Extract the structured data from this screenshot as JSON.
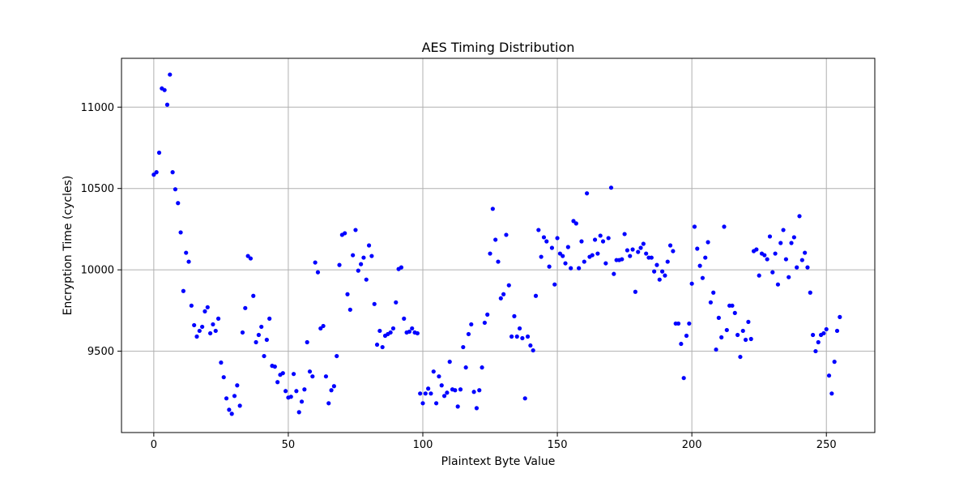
{
  "chart_data": {
    "type": "scatter",
    "title": "AES Timing Distribution",
    "xlabel": "Plaintext Byte Value",
    "ylabel": "Encryption Time (cycles)",
    "xlim": [
      -12,
      268
    ],
    "ylim": [
      9000,
      11300
    ],
    "xticks": [
      0,
      50,
      100,
      150,
      200,
      250
    ],
    "yticks": [
      9500,
      10000,
      10500,
      11000
    ],
    "grid": true,
    "marker_color": "#0000ff",
    "x": [
      0,
      1,
      2,
      3,
      4,
      5,
      6,
      7,
      8,
      9,
      10,
      11,
      12,
      13,
      14,
      15,
      16,
      17,
      18,
      19,
      20,
      21,
      22,
      23,
      24,
      25,
      26,
      27,
      28,
      29,
      30,
      31,
      32,
      33,
      34,
      35,
      36,
      37,
      38,
      39,
      40,
      41,
      42,
      43,
      44,
      45,
      46,
      47,
      48,
      49,
      50,
      51,
      52,
      53,
      54,
      55,
      56,
      57,
      58,
      59,
      60,
      61,
      62,
      63,
      64,
      65,
      66,
      67,
      68,
      69,
      70,
      71,
      72,
      73,
      74,
      75,
      76,
      77,
      78,
      79,
      80,
      81,
      82,
      83,
      84,
      85,
      86,
      87,
      88,
      89,
      90,
      91,
      92,
      93,
      94,
      95,
      96,
      97,
      98,
      99,
      100,
      101,
      102,
      103,
      104,
      105,
      106,
      107,
      108,
      109,
      110,
      111,
      112,
      113,
      114,
      115,
      116,
      117,
      118,
      119,
      120,
      121,
      122,
      123,
      124,
      125,
      126,
      127,
      128,
      129,
      130,
      131,
      132,
      133,
      134,
      135,
      136,
      137,
      138,
      139,
      140,
      141,
      142,
      143,
      144,
      145,
      146,
      147,
      148,
      149,
      150,
      151,
      152,
      153,
      154,
      155,
      156,
      157,
      158,
      159,
      160,
      161,
      162,
      163,
      164,
      165,
      166,
      167,
      168,
      169,
      170,
      171,
      172,
      173,
      174,
      175,
      176,
      177,
      178,
      179,
      180,
      181,
      182,
      183,
      184,
      185,
      186,
      187,
      188,
      189,
      190,
      191,
      192,
      193,
      194,
      195,
      196,
      197,
      198,
      199,
      200,
      201,
      202,
      203,
      204,
      205,
      206,
      207,
      208,
      209,
      210,
      211,
      212,
      213,
      214,
      215,
      216,
      217,
      218,
      219,
      220,
      221,
      222,
      223,
      224,
      225,
      226,
      227,
      228,
      229,
      230,
      231,
      232,
      233,
      234,
      235,
      236,
      237,
      238,
      239,
      240,
      241,
      242,
      243,
      244,
      245,
      246,
      247,
      248,
      249,
      250,
      251,
      252,
      253,
      254,
      255
    ],
    "y": [
      10585,
      10600,
      10720,
      11115,
      11105,
      11015,
      11200,
      10600,
      10495,
      10410,
      10230,
      9870,
      10105,
      10050,
      9780,
      9660,
      9590,
      9625,
      9650,
      9745,
      9770,
      9610,
      9665,
      9625,
      9700,
      9430,
      9340,
      9210,
      9140,
      9115,
      9225,
      9290,
      9165,
      9615,
      9765,
      10085,
      10070,
      9840,
      9555,
      9600,
      9650,
      9470,
      9570,
      9700,
      9410,
      9405,
      9310,
      9355,
      9365,
      9255,
      9215,
      9220,
      9360,
      9255,
      9125,
      9190,
      9265,
      9555,
      9375,
      9345,
      10045,
      9985,
      9640,
      9655,
      9345,
      9180,
      9260,
      9285,
      9470,
      10030,
      10215,
      10225,
      9850,
      9755,
      10090,
      10245,
      9995,
      10035,
      10075,
      9940,
      10150,
      10085,
      9790,
      9540,
      9625,
      9525,
      9595,
      9605,
      9615,
      9640,
      9800,
      10005,
      10015,
      9700,
      9615,
      9620,
      9640,
      9615,
      9610,
      9240,
      9180,
      9240,
      9270,
      9240,
      9375,
      9180,
      9345,
      9290,
      9225,
      9245,
      9435,
      9265,
      9260,
      9160,
      9265,
      9525,
      9400,
      9605,
      9665,
      9250,
      9150,
      9260,
      9400,
      9675,
      9725,
      10100,
      10375,
      10185,
      10050,
      9825,
      9850,
      10215,
      9905,
      9590,
      9715,
      9590,
      9640,
      9580,
      9210,
      9590,
      9535,
      9505,
      9840,
      10245,
      10080,
      10200,
      10175,
      10020,
      10135,
      9910,
      10195,
      10100,
      10085,
      10040,
      10140,
      10010,
      10300,
      10285,
      10010,
      10175,
      10050,
      10470,
      10080,
      10090,
      10185,
      10100,
      10210,
      10175,
      10040,
      10195,
      10505,
      9975,
      10060,
      10060,
      10065,
      10220,
      10120,
      10085,
      10125,
      9865,
      10110,
      10135,
      10160,
      10100,
      10075,
      10075,
      9990,
      10030,
      9940,
      9990,
      9965,
      10050,
      10150,
      10115,
      9670,
      9670,
      9545,
      9335,
      9595,
      9670,
      9915,
      10265,
      10130,
      10025,
      9950,
      10075,
      10170,
      9800,
      9860,
      9510,
      9705,
      9585,
      10265,
      9630,
      9780,
      9780,
      9735,
      9600,
      9465,
      9625,
      9570,
      9680,
      9575,
      10115,
      10125,
      9965,
      10100,
      10090,
      10065,
      10205,
      9985,
      10100,
      9910,
      10165,
      10245,
      10065,
      9955,
      10165,
      10200,
      10015,
      10330,
      10060,
      10105,
      10015,
      9860,
      9600,
      9500,
      9555,
      9600,
      9610,
      9635,
      9350,
      9240,
      9435,
      9625,
      9710
    ]
  }
}
